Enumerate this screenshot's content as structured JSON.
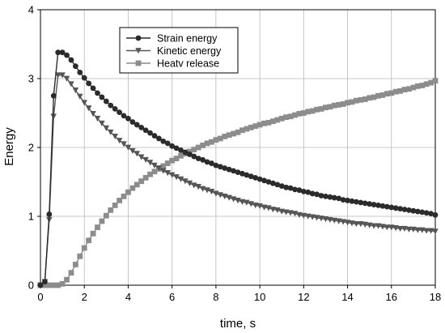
{
  "chart_data": {
    "type": "line",
    "title": "",
    "xlabel": "time, s",
    "ylabel": "Energy",
    "xlim": [
      0,
      18
    ],
    "ylim": [
      0,
      4
    ],
    "xticks": [
      0,
      2,
      4,
      6,
      8,
      10,
      12,
      14,
      16,
      18
    ],
    "yticks": [
      0,
      1,
      2,
      3,
      4
    ],
    "grid": true,
    "legend_position": "top-center",
    "series": [
      {
        "name": "Strain energy",
        "color": "#2b2b2b",
        "marker": "circle",
        "points": [
          [
            0.0,
            0.0
          ],
          [
            0.2,
            0.05
          ],
          [
            0.4,
            1.03
          ],
          [
            0.6,
            2.75
          ],
          [
            0.8,
            3.38
          ],
          [
            1.0,
            3.38
          ],
          [
            1.2,
            3.34
          ],
          [
            1.4,
            3.27
          ],
          [
            1.6,
            3.18
          ],
          [
            1.8,
            3.09
          ],
          [
            2.0,
            3.01
          ],
          [
            2.2,
            2.93
          ],
          [
            2.4,
            2.86
          ],
          [
            2.6,
            2.79
          ],
          [
            2.8,
            2.73
          ],
          [
            3.0,
            2.67
          ],
          [
            3.2,
            2.61
          ],
          [
            3.4,
            2.56
          ],
          [
            3.6,
            2.51
          ],
          [
            3.8,
            2.46
          ],
          [
            4.0,
            2.42
          ],
          [
            4.2,
            2.37
          ],
          [
            4.4,
            2.33
          ],
          [
            4.6,
            2.29
          ],
          [
            4.8,
            2.25
          ],
          [
            5.0,
            2.21
          ],
          [
            5.2,
            2.17
          ],
          [
            5.4,
            2.13
          ],
          [
            5.6,
            2.09
          ],
          [
            5.8,
            2.06
          ],
          [
            6.0,
            2.02
          ],
          [
            6.2,
            1.99
          ],
          [
            6.4,
            1.96
          ],
          [
            6.6,
            1.93
          ],
          [
            6.8,
            1.9
          ],
          [
            7.0,
            1.87
          ],
          [
            7.2,
            1.84
          ],
          [
            7.4,
            1.82
          ],
          [
            7.6,
            1.79
          ],
          [
            7.8,
            1.77
          ],
          [
            8.0,
            1.74
          ],
          [
            8.2,
            1.72
          ],
          [
            8.4,
            1.7
          ],
          [
            8.6,
            1.68
          ],
          [
            8.8,
            1.66
          ],
          [
            9.0,
            1.64
          ],
          [
            9.2,
            1.62
          ],
          [
            9.4,
            1.6
          ],
          [
            9.6,
            1.58
          ],
          [
            9.8,
            1.56
          ],
          [
            10.0,
            1.54
          ],
          [
            10.2,
            1.52
          ],
          [
            10.4,
            1.5
          ],
          [
            10.6,
            1.48
          ],
          [
            10.8,
            1.46
          ],
          [
            11.0,
            1.44
          ],
          [
            11.2,
            1.42
          ],
          [
            11.4,
            1.41
          ],
          [
            11.6,
            1.39
          ],
          [
            11.8,
            1.38
          ],
          [
            12.0,
            1.36
          ],
          [
            12.2,
            1.35
          ],
          [
            12.4,
            1.33
          ],
          [
            12.6,
            1.32
          ],
          [
            12.8,
            1.3
          ],
          [
            13.0,
            1.29
          ],
          [
            13.2,
            1.28
          ],
          [
            13.4,
            1.27
          ],
          [
            13.6,
            1.26
          ],
          [
            13.8,
            1.24
          ],
          [
            14.0,
            1.23
          ],
          [
            14.2,
            1.22
          ],
          [
            14.4,
            1.21
          ],
          [
            14.6,
            1.2
          ],
          [
            14.8,
            1.19
          ],
          [
            15.0,
            1.18
          ],
          [
            15.2,
            1.17
          ],
          [
            15.4,
            1.16
          ],
          [
            15.6,
            1.15
          ],
          [
            15.8,
            1.14
          ],
          [
            16.0,
            1.13
          ],
          [
            16.2,
            1.12
          ],
          [
            16.4,
            1.11
          ],
          [
            16.6,
            1.1
          ],
          [
            16.8,
            1.09
          ],
          [
            17.0,
            1.08
          ],
          [
            17.2,
            1.07
          ],
          [
            17.4,
            1.06
          ],
          [
            17.6,
            1.05
          ],
          [
            17.8,
            1.04
          ],
          [
            18.0,
            1.02
          ]
        ]
      },
      {
        "name": "Kinetic energy",
        "color": "#555555",
        "marker": "triangle-down",
        "points": [
          [
            0.0,
            0.0
          ],
          [
            0.2,
            0.05
          ],
          [
            0.4,
            0.95
          ],
          [
            0.6,
            2.45
          ],
          [
            0.8,
            3.05
          ],
          [
            1.0,
            3.05
          ],
          [
            1.2,
            3.0
          ],
          [
            1.4,
            2.92
          ],
          [
            1.6,
            2.83
          ],
          [
            1.8,
            2.74
          ],
          [
            2.0,
            2.65
          ],
          [
            2.2,
            2.57
          ],
          [
            2.4,
            2.49
          ],
          [
            2.6,
            2.42
          ],
          [
            2.8,
            2.35
          ],
          [
            3.0,
            2.28
          ],
          [
            3.2,
            2.22
          ],
          [
            3.4,
            2.16
          ],
          [
            3.6,
            2.1
          ],
          [
            3.8,
            2.05
          ],
          [
            4.0,
            2.0
          ],
          [
            4.2,
            1.95
          ],
          [
            4.4,
            1.91
          ],
          [
            4.6,
            1.86
          ],
          [
            4.8,
            1.82
          ],
          [
            5.0,
            1.78
          ],
          [
            5.2,
            1.74
          ],
          [
            5.4,
            1.7
          ],
          [
            5.6,
            1.66
          ],
          [
            5.8,
            1.63
          ],
          [
            6.0,
            1.6
          ],
          [
            6.2,
            1.57
          ],
          [
            6.4,
            1.54
          ],
          [
            6.6,
            1.51
          ],
          [
            6.8,
            1.48
          ],
          [
            7.0,
            1.45
          ],
          [
            7.2,
            1.43
          ],
          [
            7.4,
            1.4
          ],
          [
            7.6,
            1.38
          ],
          [
            7.8,
            1.36
          ],
          [
            8.0,
            1.33
          ],
          [
            8.2,
            1.31
          ],
          [
            8.4,
            1.29
          ],
          [
            8.6,
            1.27
          ],
          [
            8.8,
            1.25
          ],
          [
            9.0,
            1.23
          ],
          [
            9.2,
            1.21
          ],
          [
            9.4,
            1.2
          ],
          [
            9.6,
            1.18
          ],
          [
            9.8,
            1.16
          ],
          [
            10.0,
            1.15
          ],
          [
            10.2,
            1.13
          ],
          [
            10.4,
            1.12
          ],
          [
            10.6,
            1.1
          ],
          [
            10.8,
            1.09
          ],
          [
            11.0,
            1.07
          ],
          [
            11.2,
            1.06
          ],
          [
            11.4,
            1.05
          ],
          [
            11.6,
            1.04
          ],
          [
            11.8,
            1.02
          ],
          [
            12.0,
            1.01
          ],
          [
            12.2,
            1.0
          ],
          [
            12.4,
            0.99
          ],
          [
            12.6,
            0.98
          ],
          [
            12.8,
            0.97
          ],
          [
            13.0,
            0.96
          ],
          [
            13.2,
            0.95
          ],
          [
            13.4,
            0.94
          ],
          [
            13.6,
            0.93
          ],
          [
            13.8,
            0.92
          ],
          [
            14.0,
            0.91
          ],
          [
            14.2,
            0.9
          ],
          [
            14.4,
            0.89
          ],
          [
            14.6,
            0.89
          ],
          [
            14.8,
            0.88
          ],
          [
            15.0,
            0.87
          ],
          [
            15.2,
            0.86
          ],
          [
            15.4,
            0.86
          ],
          [
            15.6,
            0.85
          ],
          [
            15.8,
            0.84
          ],
          [
            16.0,
            0.84
          ],
          [
            16.2,
            0.83
          ],
          [
            16.4,
            0.82
          ],
          [
            16.6,
            0.82
          ],
          [
            16.8,
            0.81
          ],
          [
            17.0,
            0.81
          ],
          [
            17.2,
            0.8
          ],
          [
            17.4,
            0.8
          ],
          [
            17.6,
            0.79
          ],
          [
            17.8,
            0.79
          ],
          [
            18.0,
            0.78
          ]
        ]
      },
      {
        "name": "Heatv release",
        "color": "#8c8c8c",
        "marker": "square",
        "points": [
          [
            0.0,
            0.0
          ],
          [
            0.2,
            0.0
          ],
          [
            0.4,
            0.0
          ],
          [
            0.6,
            0.0
          ],
          [
            0.8,
            0.0
          ],
          [
            1.0,
            0.02
          ],
          [
            1.2,
            0.08
          ],
          [
            1.4,
            0.18
          ],
          [
            1.6,
            0.3
          ],
          [
            1.8,
            0.42
          ],
          [
            2.0,
            0.54
          ],
          [
            2.2,
            0.65
          ],
          [
            2.4,
            0.75
          ],
          [
            2.6,
            0.84
          ],
          [
            2.8,
            0.93
          ],
          [
            3.0,
            1.01
          ],
          [
            3.2,
            1.09
          ],
          [
            3.4,
            1.16
          ],
          [
            3.6,
            1.23
          ],
          [
            3.8,
            1.29
          ],
          [
            4.0,
            1.35
          ],
          [
            4.2,
            1.41
          ],
          [
            4.4,
            1.46
          ],
          [
            4.6,
            1.51
          ],
          [
            4.8,
            1.56
          ],
          [
            5.0,
            1.61
          ],
          [
            5.2,
            1.65
          ],
          [
            5.4,
            1.69
          ],
          [
            5.6,
            1.73
          ],
          [
            5.8,
            1.77
          ],
          [
            6.0,
            1.81
          ],
          [
            6.2,
            1.84
          ],
          [
            6.4,
            1.88
          ],
          [
            6.6,
            1.91
          ],
          [
            6.8,
            1.94
          ],
          [
            7.0,
            1.97
          ],
          [
            7.2,
            2.0
          ],
          [
            7.4,
            2.03
          ],
          [
            7.6,
            2.06
          ],
          [
            7.8,
            2.08
          ],
          [
            8.0,
            2.11
          ],
          [
            8.2,
            2.13
          ],
          [
            8.4,
            2.16
          ],
          [
            8.6,
            2.18
          ],
          [
            8.8,
            2.2
          ],
          [
            9.0,
            2.22
          ],
          [
            9.2,
            2.25
          ],
          [
            9.4,
            2.27
          ],
          [
            9.6,
            2.29
          ],
          [
            9.8,
            2.31
          ],
          [
            10.0,
            2.33
          ],
          [
            10.2,
            2.35
          ],
          [
            10.4,
            2.36
          ],
          [
            10.6,
            2.38
          ],
          [
            10.8,
            2.4
          ],
          [
            11.0,
            2.42
          ],
          [
            11.2,
            2.44
          ],
          [
            11.4,
            2.45
          ],
          [
            11.6,
            2.47
          ],
          [
            11.8,
            2.49
          ],
          [
            12.0,
            2.5
          ],
          [
            12.2,
            2.52
          ],
          [
            12.4,
            2.53
          ],
          [
            12.6,
            2.55
          ],
          [
            12.8,
            2.56
          ],
          [
            13.0,
            2.58
          ],
          [
            13.2,
            2.59
          ],
          [
            13.4,
            2.61
          ],
          [
            13.6,
            2.62
          ],
          [
            13.8,
            2.63
          ],
          [
            14.0,
            2.65
          ],
          [
            14.2,
            2.66
          ],
          [
            14.4,
            2.68
          ],
          [
            14.6,
            2.69
          ],
          [
            14.8,
            2.7
          ],
          [
            15.0,
            2.72
          ],
          [
            15.2,
            2.73
          ],
          [
            15.4,
            2.75
          ],
          [
            15.6,
            2.76
          ],
          [
            15.8,
            2.78
          ],
          [
            16.0,
            2.79
          ],
          [
            16.2,
            2.81
          ],
          [
            16.4,
            2.82
          ],
          [
            16.6,
            2.84
          ],
          [
            16.8,
            2.85
          ],
          [
            17.0,
            2.87
          ],
          [
            17.2,
            2.89
          ],
          [
            17.4,
            2.9
          ],
          [
            17.6,
            2.92
          ],
          [
            17.8,
            2.94
          ],
          [
            18.0,
            2.97
          ]
        ]
      }
    ]
  }
}
